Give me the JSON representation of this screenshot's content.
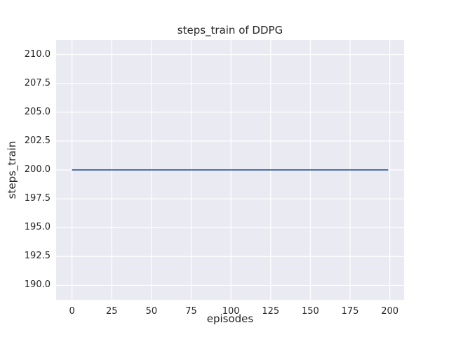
{
  "chart_data": {
    "type": "line",
    "title": "steps_train of DDPG",
    "xlabel": "episodes",
    "ylabel": "steps_train",
    "xlim": [
      -10,
      209
    ],
    "ylim": [
      188.75,
      211.25
    ],
    "xticks": [
      0,
      25,
      50,
      75,
      100,
      125,
      150,
      175,
      200
    ],
    "xtick_labels": [
      "0",
      "25",
      "50",
      "75",
      "100",
      "125",
      "150",
      "175",
      "200"
    ],
    "yticks": [
      190.0,
      192.5,
      195.0,
      197.5,
      200.0,
      202.5,
      205.0,
      207.5,
      210.0
    ],
    "ytick_labels": [
      "190.0",
      "192.5",
      "195.0",
      "197.5",
      "200.0",
      "202.5",
      "205.0",
      "207.5",
      "210.0"
    ],
    "grid": true,
    "legend_position": "none",
    "series": [
      {
        "name": "steps_train",
        "color": "#4C72B0",
        "x": [
          0,
          199
        ],
        "y": [
          200,
          200
        ],
        "constant_value": 200
      }
    ]
  },
  "colors": {
    "figure_background": "#FFFFFF",
    "plot_background": "#EAEAF2",
    "grid": "#FFFFFF",
    "line": "#4C72B0",
    "text": "#262626"
  }
}
